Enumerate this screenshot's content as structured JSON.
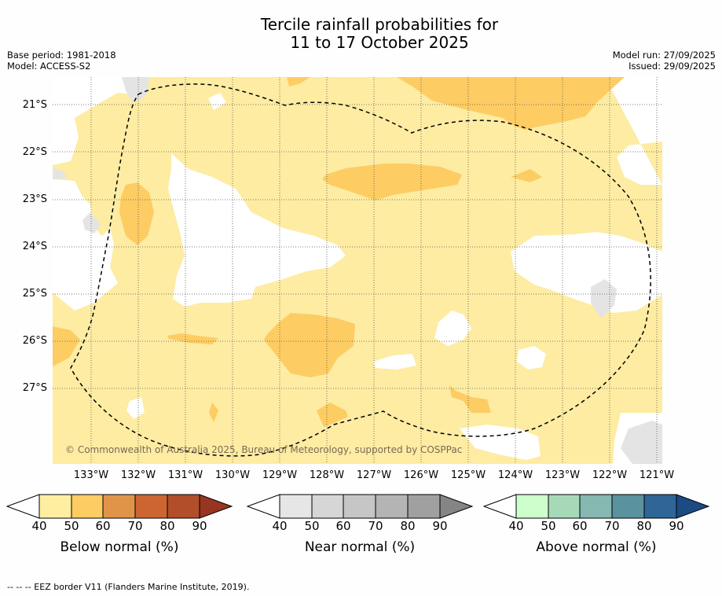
{
  "title": {
    "line1": "Tercile rainfall probabilities for",
    "line2": "11 to 17 October 2025"
  },
  "meta_left": {
    "base_period": "Base period: 1981-2018",
    "model": "Model: ACCESS-S2"
  },
  "meta_right": {
    "model_run": "Model run: 27/09/2025",
    "issued": "Issued: 29/09/2025"
  },
  "lat_labels": [
    "21°S",
    "22°S",
    "23°S",
    "24°S",
    "25°S",
    "26°S",
    "27°S"
  ],
  "lon_labels": [
    "133°W",
    "132°W",
    "131°W",
    "130°W",
    "129°W",
    "128°W",
    "127°W",
    "126°W",
    "125°W",
    "124°W",
    "123°W",
    "122°W",
    "121°W"
  ],
  "copyright": "© Commonwealth of Australia 2025, Bureau of Meteorology, supported by COSPPac",
  "colorbars": [
    {
      "title": "Below normal (%)",
      "ticks": [
        "40",
        "50",
        "60",
        "70",
        "80",
        "90"
      ],
      "colors": [
        "#ffeea0",
        "#fdcc63",
        "#e0944a",
        "#cc6532",
        "#b24e2a",
        "#983422"
      ]
    },
    {
      "title": "Near normal (%)",
      "ticks": [
        "40",
        "50",
        "60",
        "70",
        "80",
        "90"
      ],
      "colors": [
        "#e6e6e6",
        "#d6d6d6",
        "#c6c6c6",
        "#b4b4b4",
        "#a0a0a0",
        "#858585"
      ]
    },
    {
      "title": "Above normal (%)",
      "ticks": [
        "40",
        "50",
        "60",
        "70",
        "80",
        "90"
      ],
      "colors": [
        "#ccffcc",
        "#a6d9b8",
        "#84b8b0",
        "#5a92a0",
        "#2f6597",
        "#1c4b84"
      ]
    }
  ],
  "footer": "--  --  -- EEZ border V11 (Flanders Marine Institute, 2019)."
}
